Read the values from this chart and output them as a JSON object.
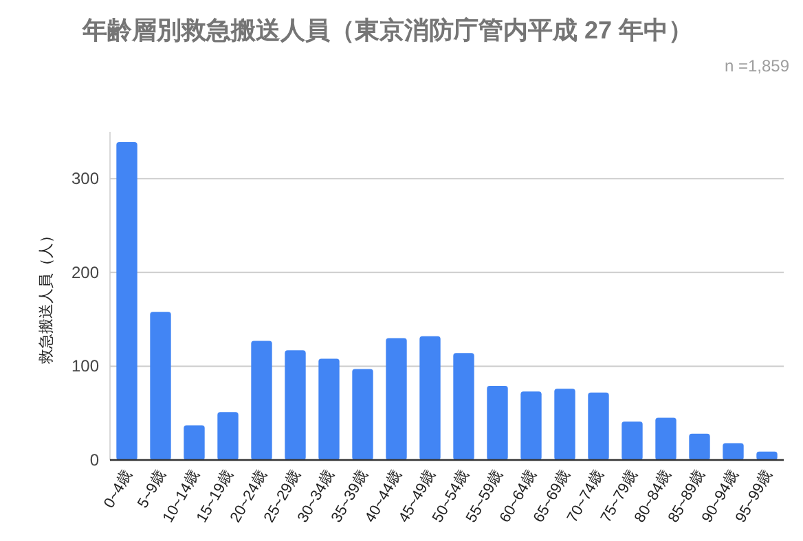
{
  "chart_data": {
    "type": "bar",
    "title": "年齢層別救急搬送人員（東京消防庁管内平成 27 年中）",
    "annotations": [
      "n =1,859"
    ],
    "ylabel": "救急搬送人員（人）",
    "categories": [
      "0~4歳",
      "5~9歳",
      "10~14歳",
      "15~19歳",
      "20~24歳",
      "25~29歳",
      "30~34歳",
      "35~39歳",
      "40~44歳",
      "45~49歳",
      "50~54歳",
      "55~59歳",
      "60~64歳",
      "65~69歳",
      "70~74歳",
      "75~79歳",
      "80~84歳",
      "85~89歳",
      "90~94歳",
      "95~99歳"
    ],
    "values": [
      339,
      158,
      37,
      51,
      127,
      117,
      108,
      97,
      130,
      132,
      114,
      79,
      73,
      76,
      72,
      41,
      45,
      28,
      18,
      9
    ],
    "color": "#4285f4",
    "ylim": [
      0,
      350
    ],
    "yticks": [
      0,
      100,
      200,
      300
    ],
    "grid": "y",
    "legend": false
  }
}
